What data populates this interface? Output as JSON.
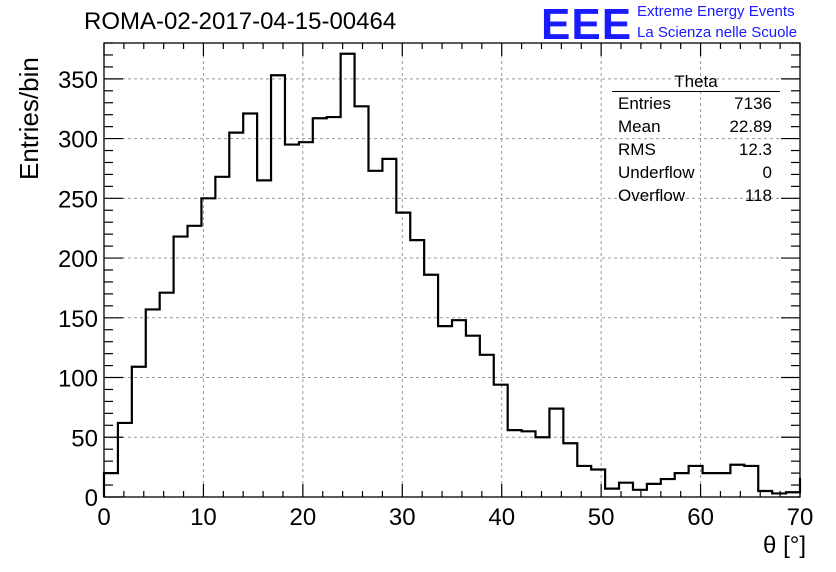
{
  "header": {
    "title": "ROMA-02-2017-04-15-00464",
    "logo": "EEE",
    "logo_line1": "Extreme Energy Events",
    "logo_line2": "La Scienza nelle Scuole",
    "logo_color": "#1a1aff"
  },
  "stats": {
    "title": "Theta",
    "rows": [
      {
        "label": "Entries",
        "value": "7136"
      },
      {
        "label": "Mean",
        "value": "22.89"
      },
      {
        "label": "RMS",
        "value": "12.3"
      },
      {
        "label": "Underflow",
        "value": "0"
      },
      {
        "label": "Overflow",
        "value": "118"
      }
    ]
  },
  "chart_data": {
    "type": "bar",
    "title": "ROMA-02-2017-04-15-00464",
    "xlabel": "θ [°]",
    "ylabel": "Entries/bin",
    "xlim": [
      0,
      70
    ],
    "ylim": [
      0,
      380
    ],
    "xticks": [
      0,
      10,
      20,
      30,
      40,
      50,
      60,
      70
    ],
    "yticks": [
      0,
      50,
      100,
      150,
      200,
      250,
      300,
      350
    ],
    "grid": true,
    "bin_width": 1.4,
    "bin_edges_start": 0,
    "values": [
      20,
      62,
      109,
      157,
      171,
      218,
      227,
      250,
      268,
      305,
      321,
      265,
      353,
      295,
      297,
      317,
      318,
      371,
      327,
      273,
      283,
      238,
      215,
      186,
      143,
      148,
      135,
      119,
      94,
      56,
      55,
      50,
      74,
      45,
      26,
      23,
      7,
      12,
      6,
      11,
      15,
      20,
      26,
      20,
      20,
      27,
      26,
      5,
      3,
      4,
      16
    ],
    "line_color": "#000000"
  }
}
